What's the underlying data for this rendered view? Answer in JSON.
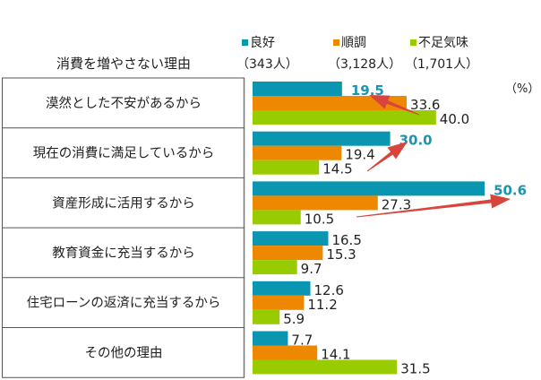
{
  "chart_data": {
    "type": "bar",
    "orientation": "horizontal",
    "category_header": "消費を増やさない理由",
    "unit_label": "（%）",
    "categories": [
      "漠然とした不安があるから",
      "現在の消費に満足しているから",
      "資産形成に活用するから",
      "教育資金に充当するから",
      "住宅ローンの返済に充当するから",
      "その他の理由"
    ],
    "series": [
      {
        "name": "良好",
        "count": "（343人）",
        "color": "#0a95b1",
        "values": [
          19.5,
          30.0,
          50.6,
          16.5,
          12.6,
          7.7
        ]
      },
      {
        "name": "順調",
        "count": "（3,128人）",
        "color": "#ee8800",
        "values": [
          33.6,
          19.4,
          27.3,
          15.3,
          11.2,
          14.1
        ]
      },
      {
        "name": "不足気味",
        "count": "（1,701人）",
        "color": "#99cc00",
        "values": [
          40.0,
          14.5,
          10.5,
          9.7,
          5.9,
          31.5
        ]
      }
    ],
    "highlighted_labels": [
      [
        0,
        0
      ],
      [
        0,
        1
      ],
      [
        0,
        2
      ]
    ],
    "highlight_color": "#1a95b0",
    "arrow_color": "#d9453c",
    "legend": "top",
    "grid": false
  }
}
